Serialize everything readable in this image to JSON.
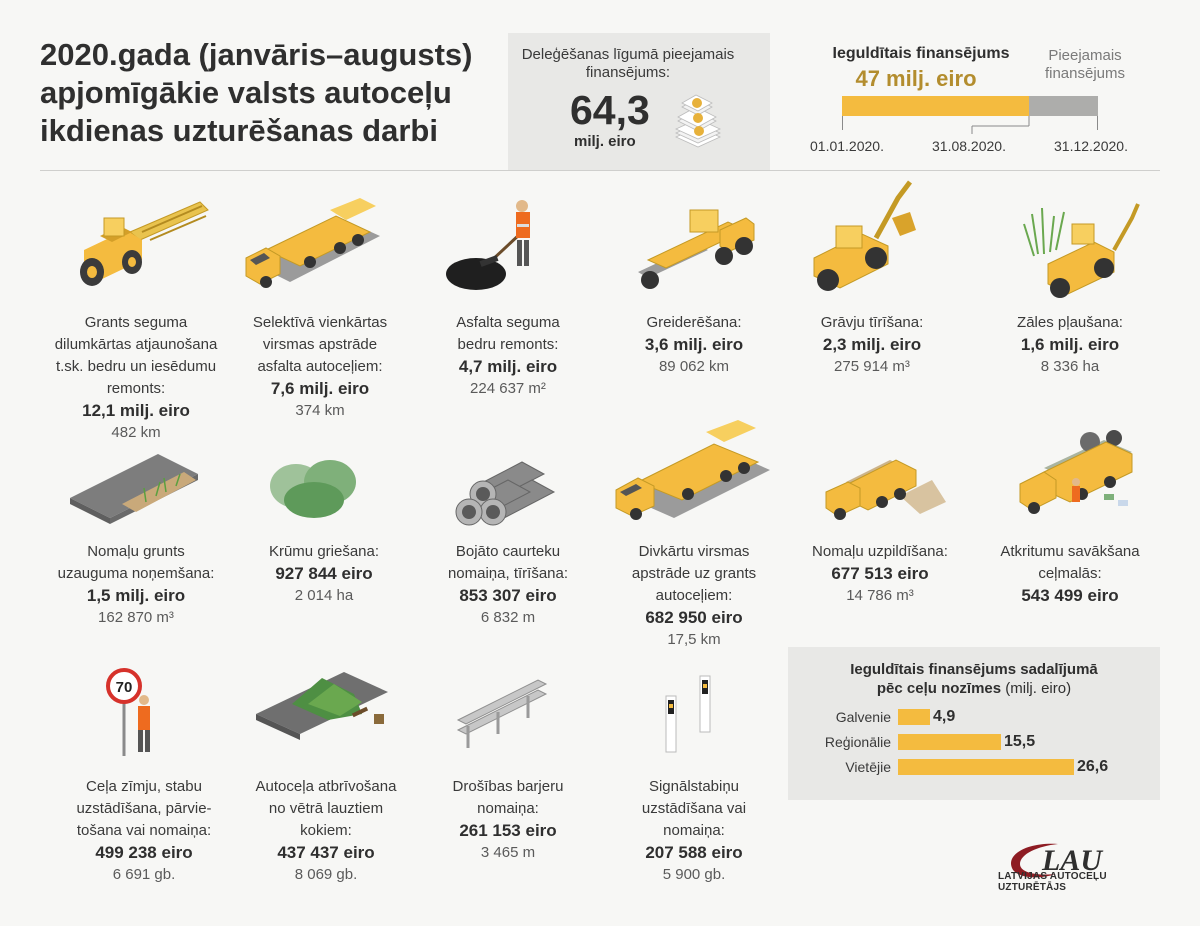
{
  "title": "2020.gada (janvāris–augusts) apjomīgākie valsts autoceļu ikdienas uzturēšanas darbi",
  "delegation": {
    "label": "Deleģēšanas līgumā pieejamais finansējums:",
    "value": "64,3",
    "unit": "milj. eiro"
  },
  "financing": {
    "invested_label": "Ieguldītais finansējums",
    "invested_value": "47 milj. eiro",
    "available_label": "Pieejamais finansējums",
    "invested_fraction": 0.731,
    "dates": [
      "01.01.2020.",
      "31.08.2020.",
      "31.12.2020."
    ],
    "colors": {
      "invested": "#f4bb3f",
      "available": "#adadab"
    }
  },
  "items": [
    {
      "label": "Grants seguma\ndilumkārtas atjaunošana\nt.sk. bedru un iesēdumu\nremonts:",
      "value": "12,1 milj. eiro",
      "sub": "482 km",
      "icon": "tractor-with-harrow-icon"
    },
    {
      "label": "Selektīvā vienkārtas\nvirsmas apstrāde\nasfalta autoceļiem:",
      "value": "7,6 milj. eiro",
      "sub": "374 km",
      "icon": "tanker-truck-icon"
    },
    {
      "label": "Asfalta seguma\nbedru remonts:",
      "value": "4,7 milj. eiro",
      "sub": "224 637 m²",
      "icon": "worker-asphalt-icon"
    },
    {
      "label": "Greiderēšana:",
      "value": "3,6 milj. eiro",
      "sub": "89 062 km",
      "icon": "grader-icon"
    },
    {
      "label": "Grāvju tīrīšana:",
      "value": "2,3 milj. eiro",
      "sub": "275 914 m³",
      "icon": "excavator-icon"
    },
    {
      "label": "Zāles pļaušana:",
      "value": "1,6 milj. eiro",
      "sub": "8 336 ha",
      "icon": "mower-tractor-icon"
    },
    {
      "label": "Nomaļu grunts\nuzauguma noņemšana:",
      "value": "1,5 milj. eiro",
      "sub": "162 870 m³",
      "icon": "road-shoulder-icon"
    },
    {
      "label": "Krūmu griešana:",
      "value": "927 844 eiro",
      "sub": "2 014 ha",
      "icon": "bushes-icon"
    },
    {
      "label": "Bojāto caurteku\nnomaiņa, tīrīšana:",
      "value": "853 307 eiro",
      "sub": "6 832 m",
      "icon": "culvert-pipes-icon"
    },
    {
      "label": "Divkārtu virsmas\napstrāde uz grants\nautoceļiem:",
      "value": "682 950 eiro",
      "sub": "17,5 km",
      "icon": "tanker-truck-2-icon"
    },
    {
      "label": "Nomaļu uzpildīšana:",
      "value": "677 513 eiro",
      "sub": "14 786 m³",
      "icon": "dump-truck-icon"
    },
    {
      "label": "Atkritumu savākšana\nceļmalās:",
      "value": "543 499 eiro",
      "sub": "",
      "icon": "garbage-truck-icon"
    },
    {
      "label": "Ceļa zīmju, stabu\nuzstādīšana, pārvie-\ntošana vai nomaiņa:",
      "value": "499 238 eiro",
      "sub": "6 691 gb.",
      "icon": "road-sign-worker-icon"
    },
    {
      "label": "Autoceļa atbrīvošana\nno vētrā lauztiem\nkokiem:",
      "value": "437 437 eiro",
      "sub": "8 069 gb.",
      "icon": "fallen-tree-icon"
    },
    {
      "label": "Drošības barjeru\nnomaiņa:",
      "value": "261 153 eiro",
      "sub": "3 465 m",
      "icon": "guardrail-icon"
    },
    {
      "label": "Signālstabiņu\nuzstādīšana vai\nnomaiņa:",
      "value": "207 588 eiro",
      "sub": "5 900 gb.",
      "icon": "delineator-posts-icon"
    }
  ],
  "breakdown": {
    "title": "Ieguldītais finansējums sadalījumā",
    "title2": "pēc ceļu nozīmes",
    "unit": "(milj. eiro)",
    "rows": [
      {
        "label": "Galvenie",
        "value": 4.9,
        "display": "4,9"
      },
      {
        "label": "Reģionālie",
        "value": 15.5,
        "display": "15,5"
      },
      {
        "label": "Vietējie",
        "value": 26.6,
        "display": "26,6"
      }
    ],
    "color": "#f4bb3f"
  },
  "logo": {
    "mark": "LAU",
    "name": "LATVIJAS AUTOCEĻU UZTURĒTĀJS"
  }
}
